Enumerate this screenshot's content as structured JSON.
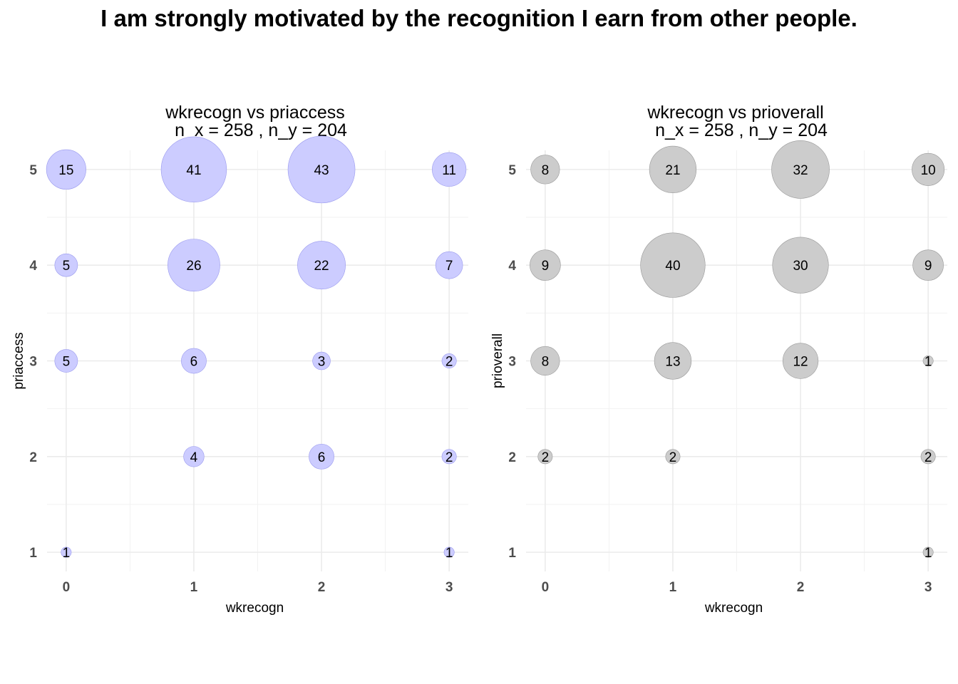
{
  "title": "I am strongly motivated by the recognition I earn from other people.",
  "chart_data": [
    {
      "type": "scatter",
      "title": "wkrecogn vs priaccess",
      "subtitle": "n_x = 258 , n_y = 204",
      "xlabel": "wkrecogn",
      "ylabel": "priaccess",
      "x_ticks": [
        0,
        1,
        2,
        3
      ],
      "y_ticks": [
        1,
        2,
        3,
        4,
        5
      ],
      "xlim": [
        -0.15,
        3.15
      ],
      "ylim": [
        0.8,
        5.2
      ],
      "grid": true,
      "color": "#ccccff",
      "stroke": "#9999ee",
      "points": [
        {
          "x": 0,
          "y": 5,
          "count": 15
        },
        {
          "x": 1,
          "y": 5,
          "count": 41
        },
        {
          "x": 2,
          "y": 5,
          "count": 43
        },
        {
          "x": 3,
          "y": 5,
          "count": 11
        },
        {
          "x": 0,
          "y": 4,
          "count": 5
        },
        {
          "x": 1,
          "y": 4,
          "count": 26
        },
        {
          "x": 2,
          "y": 4,
          "count": 22
        },
        {
          "x": 3,
          "y": 4,
          "count": 7
        },
        {
          "x": 0,
          "y": 3,
          "count": 5
        },
        {
          "x": 1,
          "y": 3,
          "count": 6
        },
        {
          "x": 2,
          "y": 3,
          "count": 3
        },
        {
          "x": 3,
          "y": 3,
          "count": 2
        },
        {
          "x": 1,
          "y": 2,
          "count": 4
        },
        {
          "x": 2,
          "y": 2,
          "count": 6
        },
        {
          "x": 3,
          "y": 2,
          "count": 2
        },
        {
          "x": 0,
          "y": 1,
          "count": 1
        },
        {
          "x": 3,
          "y": 1,
          "count": 1
        }
      ]
    },
    {
      "type": "scatter",
      "title": "wkrecogn vs prioverall",
      "subtitle": "n_x = 258 , n_y = 204",
      "xlabel": "wkrecogn",
      "ylabel": "prioverall",
      "x_ticks": [
        0,
        1,
        2,
        3
      ],
      "y_ticks": [
        1,
        2,
        3,
        4,
        5
      ],
      "xlim": [
        -0.15,
        3.15
      ],
      "ylim": [
        0.8,
        5.2
      ],
      "grid": true,
      "color": "#cccccc",
      "stroke": "#999999",
      "points": [
        {
          "x": 0,
          "y": 5,
          "count": 8
        },
        {
          "x": 1,
          "y": 5,
          "count": 21
        },
        {
          "x": 2,
          "y": 5,
          "count": 32
        },
        {
          "x": 3,
          "y": 5,
          "count": 10
        },
        {
          "x": 0,
          "y": 4,
          "count": 9
        },
        {
          "x": 1,
          "y": 4,
          "count": 40
        },
        {
          "x": 2,
          "y": 4,
          "count": 30
        },
        {
          "x": 3,
          "y": 4,
          "count": 9
        },
        {
          "x": 0,
          "y": 3,
          "count": 8
        },
        {
          "x": 1,
          "y": 3,
          "count": 13
        },
        {
          "x": 2,
          "y": 3,
          "count": 12
        },
        {
          "x": 3,
          "y": 3,
          "count": 1
        },
        {
          "x": 0,
          "y": 2,
          "count": 2
        },
        {
          "x": 1,
          "y": 2,
          "count": 2
        },
        {
          "x": 3,
          "y": 2,
          "count": 2
        },
        {
          "x": 3,
          "y": 1,
          "count": 1
        }
      ]
    }
  ]
}
